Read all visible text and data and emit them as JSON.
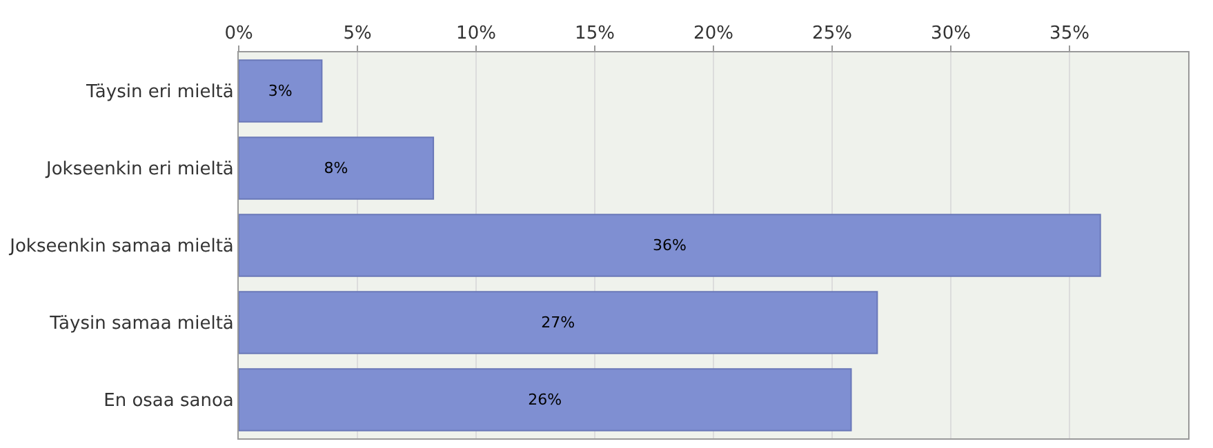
{
  "chart_data": {
    "type": "bar",
    "orientation": "horizontal",
    "categories": [
      "Täysin eri mieltä",
      "Jokseenkin eri mieltä",
      "Jokseenkin samaa mieltä",
      "Täysin samaa mieltä",
      "En osaa sanoa"
    ],
    "values": [
      3.5,
      8.2,
      36.3,
      26.9,
      25.8
    ],
    "value_labels": [
      "3%",
      "8%",
      "36%",
      "27%",
      "26%"
    ],
    "color": "#7f8fd2",
    "xlim": [
      0,
      40
    ],
    "xticks": [
      {
        "value": 0,
        "label": "0%"
      },
      {
        "value": 5,
        "label": "5%"
      },
      {
        "value": 10,
        "label": "10%"
      },
      {
        "value": 15,
        "label": "15%"
      },
      {
        "value": 20,
        "label": "20%"
      },
      {
        "value": 25,
        "label": "25%"
      },
      {
        "value": 30,
        "label": "30%"
      },
      {
        "value": 35,
        "label": "35%"
      }
    ],
    "grid": "x",
    "legend": false
  }
}
